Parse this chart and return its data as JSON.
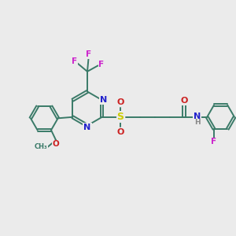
{
  "background_color": "#ebebeb",
  "bond_color": "#3a7a68",
  "atom_colors": {
    "N": "#2222cc",
    "O": "#cc2222",
    "F": "#cc22cc",
    "S": "#cccc00",
    "C": "#3a7a68",
    "H": "#888888"
  },
  "lw": 1.4
}
